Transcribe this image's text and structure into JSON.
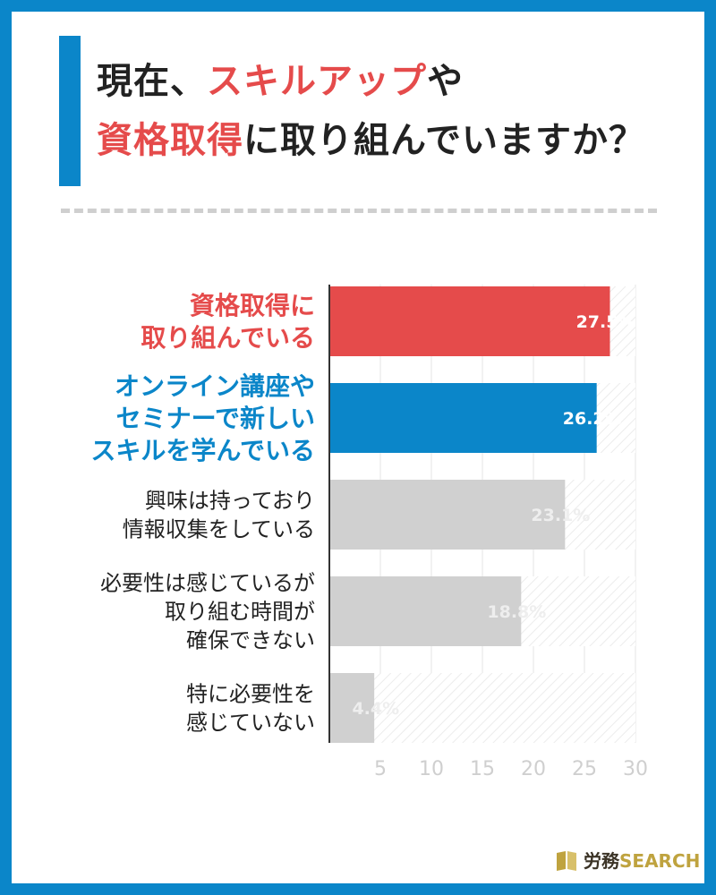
{
  "header": {
    "title_line1_a": "現在、",
    "title_line1_hl": "スキルアップ",
    "title_line1_b": "や",
    "title_line2_hl": "資格取得",
    "title_line2_b": "に取り組んでいますか？"
  },
  "brand": {
    "logo_jp": "労務",
    "logo_en": "SEARCH",
    "logo_icon": "book-icon"
  },
  "colors": {
    "frame_blue": "#0b86c9",
    "highlight_red": "#e54b4b",
    "bar_red": "#e54b4b",
    "bar_blue": "#0b86c9",
    "bar_gray": "#d0d0d0",
    "label_gray": "#222222"
  },
  "chart_data": {
    "type": "bar",
    "orientation": "horizontal",
    "categories": [
      [
        "資格取得に",
        "取り組んでいる"
      ],
      [
        "オンライン講座や",
        "セミナーで新しい",
        "スキルを学んでいる"
      ],
      [
        "興味は持っており",
        "情報収集をしている"
      ],
      [
        "必要性は感じているが",
        "取り組む時間が",
        "確保できない"
      ],
      [
        "特に必要性を",
        "感じていない"
      ]
    ],
    "values": [
      27.5,
      26.2,
      23.1,
      18.8,
      4.4
    ],
    "value_labels": [
      "27.5%",
      "26.2%",
      "23.1%",
      "18.8%",
      "4.4%"
    ],
    "xticks": [
      "5",
      "10",
      "15",
      "20",
      "25",
      "30"
    ],
    "xlim": [
      0,
      30
    ],
    "bar_colors": [
      "#e54b4b",
      "#0b86c9",
      "#d0d0d0",
      "#d0d0d0",
      "#d0d0d0"
    ],
    "label_colors": [
      "#e54b4b",
      "#0b86c9",
      "#222222",
      "#222222",
      "#222222"
    ],
    "value_colors": [
      "#ffffff",
      "#ffffff",
      "#eeeeee",
      "#eeeeee",
      "#eeeeee"
    ],
    "grid": true
  }
}
